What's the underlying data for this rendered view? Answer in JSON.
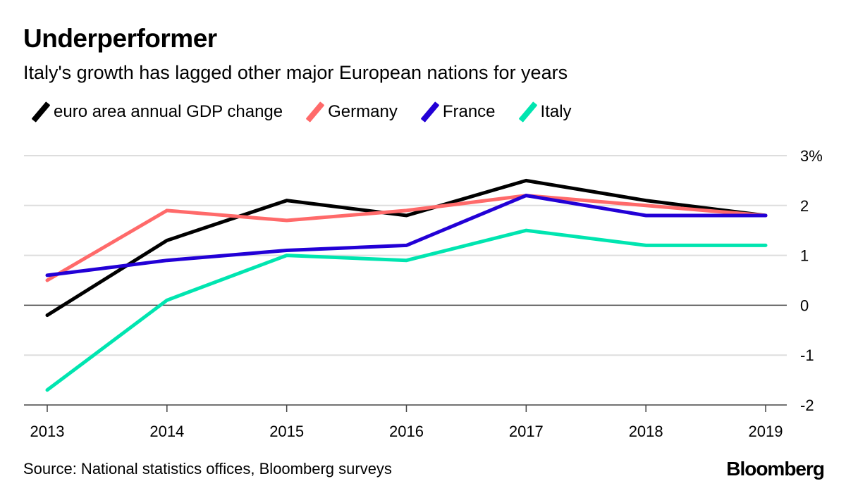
{
  "header": {
    "title": "Underperformer",
    "subtitle": "Italy's growth has lagged other major European nations for years"
  },
  "footer": {
    "source": "Source: National statistics offices, Bloomberg surveys",
    "brand": "Bloomberg"
  },
  "chart_data": {
    "type": "line",
    "title": "Underperformer",
    "subtitle": "Italy's growth has lagged other major European nations for years",
    "xlabel": "",
    "ylabel": "",
    "x": [
      "2013",
      "2014",
      "2015",
      "2016",
      "2017",
      "2018",
      "2019"
    ],
    "ylim": [
      -2,
      3
    ],
    "yticks": [
      3,
      2,
      1,
      0,
      -1,
      -2
    ],
    "ytick_labels": [
      "3%",
      "2",
      "1",
      "0",
      "-1",
      "-2"
    ],
    "y_axis_side": "right",
    "grid": true,
    "legend_position": "top-left",
    "series": [
      {
        "name": "euro area annual GDP change",
        "color": "#000000",
        "values": [
          -0.2,
          1.3,
          2.1,
          1.8,
          2.5,
          2.1,
          1.8
        ]
      },
      {
        "name": "Germany",
        "color": "#ff6a6a",
        "values": [
          0.5,
          1.9,
          1.7,
          1.9,
          2.2,
          2.0,
          1.8
        ]
      },
      {
        "name": "France",
        "color": "#2200d6",
        "values": [
          0.6,
          0.9,
          1.1,
          1.2,
          2.2,
          1.8,
          1.8
        ]
      },
      {
        "name": "Italy",
        "color": "#00e5b0",
        "values": [
          -1.7,
          0.1,
          1.0,
          0.9,
          1.5,
          1.2,
          1.2
        ]
      }
    ]
  }
}
